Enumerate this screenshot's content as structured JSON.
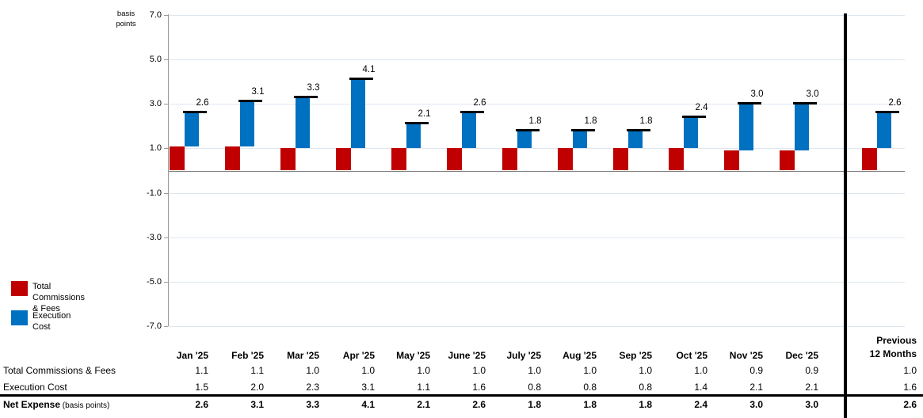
{
  "axis_title": {
    "line1": "basis",
    "line2": "points"
  },
  "colors": {
    "commissions_red": "#C00000",
    "execution_blue": "#0070C0",
    "gridline": "#dee7f0",
    "zero_line": "#808080",
    "axis_line": "#9a9a9a",
    "net_marker": "#000000",
    "separator": "#000000"
  },
  "legend": {
    "items": [
      {
        "line1": "Total Commissions",
        "line2": "& Fees",
        "color": "#C00000"
      },
      {
        "line1": "Execution",
        "line2": "Cost",
        "color": "#0070C0"
      }
    ]
  },
  "chart_data": {
    "type": "bar",
    "stacked": true,
    "ylabel": "basis points",
    "ylim": [
      -7.0,
      7.0
    ],
    "yticks": [
      7.0,
      5.0,
      3.0,
      1.0,
      -1.0,
      -3.0,
      -5.0,
      -7.0
    ],
    "grid": true,
    "legend_position": "bottom-left",
    "categories": [
      "Jan '25",
      "Feb '25",
      "Mar '25",
      "Apr '25",
      "May '25",
      "June '25",
      "July '25",
      "Aug '25",
      "Sep '25",
      "Oct '25",
      "Nov '25",
      "Dec '25",
      "Previous 12 Months"
    ],
    "series": [
      {
        "name": "Total Commissions & Fees",
        "color": "#C00000",
        "values": [
          1.1,
          1.1,
          1.0,
          1.0,
          1.0,
          1.0,
          1.0,
          1.0,
          1.0,
          1.0,
          0.9,
          0.9,
          1.0
        ]
      },
      {
        "name": "Execution Cost",
        "color": "#0070C0",
        "values": [
          1.5,
          2.0,
          2.3,
          3.1,
          1.1,
          1.6,
          0.8,
          0.8,
          0.8,
          1.4,
          2.1,
          2.1,
          1.6
        ]
      }
    ],
    "totals": {
      "name": "Net Expense",
      "unit_note": "(basis points)",
      "values": [
        2.6,
        3.1,
        3.3,
        4.1,
        2.1,
        2.6,
        1.8,
        1.8,
        1.8,
        2.4,
        3.0,
        3.0,
        2.6
      ]
    }
  },
  "table": {
    "columns": [
      "Jan '25",
      "Feb '25",
      "Mar '25",
      "Apr '25",
      "May '25",
      "June '25",
      "July '25",
      "Aug '25",
      "Sep '25",
      "Oct '25",
      "Nov '25",
      "Dec '25"
    ],
    "last_column": {
      "line1": "Previous",
      "line2": "12 Months"
    },
    "rows": [
      {
        "label": "Total Commissions & Fees",
        "values": [
          1.1,
          1.1,
          1.0,
          1.0,
          1.0,
          1.0,
          1.0,
          1.0,
          1.0,
          1.0,
          0.9,
          0.9,
          1.0
        ]
      },
      {
        "label": "Execution Cost",
        "values": [
          1.5,
          2.0,
          2.3,
          3.1,
          1.1,
          1.6,
          0.8,
          0.8,
          0.8,
          1.4,
          2.1,
          2.1,
          1.6
        ]
      }
    ],
    "net_row": {
      "label": "Net Expense",
      "label_suffix": " (basis points)",
      "values": [
        2.6,
        3.1,
        3.3,
        4.1,
        2.1,
        2.6,
        1.8,
        1.8,
        1.8,
        2.4,
        3.0,
        3.0,
        2.6
      ]
    }
  }
}
